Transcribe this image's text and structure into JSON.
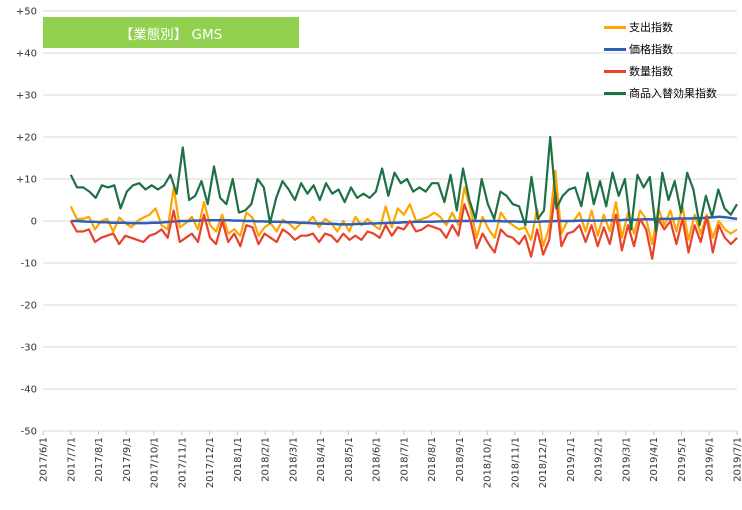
{
  "chart_data": {
    "type": "line",
    "title": "【業態別】 GMS",
    "title_background": "#92d050",
    "ylim": [
      -50,
      50
    ],
    "y_ticks": [
      "+50",
      "+40",
      "+30",
      "+20",
      "+10",
      "0",
      "-10",
      "-20",
      "-30",
      "-40",
      "-50"
    ],
    "y_tick_values": [
      50,
      40,
      30,
      20,
      10,
      0,
      -10,
      -20,
      -30,
      -40,
      -50
    ],
    "x_tick_labels": [
      "2017/6/1",
      "2017/7/1",
      "2017/8/1",
      "2017/9/1",
      "2017/10/1",
      "2017/11/1",
      "2017/12/1",
      "2018/1/1",
      "2018/2/1",
      "2018/3/1",
      "2018/4/1",
      "2018/5/1",
      "2018/6/1",
      "2018/7/1",
      "2018/8/1",
      "2018/9/1",
      "2018/10/1",
      "2018/11/1",
      "2018/12/1",
      "2019/1/1",
      "2019/2/1",
      "2019/3/1",
      "2019/4/1",
      "2019/5/1",
      "2019/6/1",
      "2019/7/1"
    ],
    "x_range": [
      "2017/6/1",
      "2019/7/1"
    ],
    "grid": "horizontal",
    "legend_position": "top-right",
    "series": [
      {
        "name": "支出指数",
        "color": "#ffa500",
        "values": [
          3.5,
          0.5,
          0.5,
          1.0,
          -2.0,
          0.0,
          0.5,
          -2.5,
          0.8,
          -0.5,
          -1.5,
          0.0,
          0.8,
          1.5,
          3.0,
          -1.0,
          -2.0,
          8.0,
          -1.5,
          -0.5,
          1.0,
          -2.0,
          4.5,
          -1.0,
          -2.5,
          1.5,
          -3.0,
          -2.0,
          -3.5,
          2.0,
          0.8,
          -3.5,
          -1.5,
          -0.5,
          -2.5,
          0.3,
          -0.5,
          -2.0,
          -0.5,
          -0.5,
          1.0,
          -1.5,
          0.5,
          -0.5,
          -2.5,
          0.0,
          -2.5,
          1.0,
          -1.0,
          0.5,
          -1.0,
          -2.0,
          3.5,
          -1.5,
          3.0,
          1.5,
          4.0,
          0.0,
          0.5,
          1.0,
          2.0,
          1.0,
          -1.0,
          2.0,
          -1.0,
          8.0,
          3.0,
          -4.0,
          1.0,
          -2.0,
          -4.0,
          2.0,
          0.0,
          -1.0,
          -2.0,
          -1.5,
          -4.5,
          3.0,
          -6.0,
          -1.5,
          12.0,
          -3.0,
          0.0,
          0.0,
          2.0,
          -2.5,
          2.5,
          -3.5,
          1.5,
          -2.5,
          4.5,
          -4.0,
          2.0,
          -3.0,
          2.5,
          0.5,
          -5.5,
          3.0,
          -1.0,
          2.5,
          -2.5,
          3.5,
          -4.5,
          1.5,
          -3.0,
          1.5,
          -4.0,
          0.0,
          -2.0,
          -3.0,
          -2.0
        ]
      },
      {
        "name": "価格指数",
        "color": "#2e5fb8",
        "values": [
          0.0,
          0.0,
          -0.1,
          -0.2,
          -0.2,
          -0.3,
          -0.3,
          -0.4,
          -0.4,
          -0.4,
          -0.5,
          -0.5,
          -0.5,
          -0.5,
          -0.4,
          -0.4,
          -0.3,
          -0.2,
          -0.1,
          0.0,
          0.0,
          0.1,
          0.1,
          0.2,
          0.2,
          0.2,
          0.2,
          0.2,
          0.1,
          0.1,
          0.0,
          0.0,
          -0.1,
          -0.1,
          -0.2,
          -0.2,
          -0.2,
          -0.3,
          -0.3,
          -0.4,
          -0.4,
          -0.5,
          -0.6,
          -0.6,
          -0.7,
          -0.7,
          -0.8,
          -0.8,
          -0.8,
          -0.7,
          -0.7,
          -0.6,
          -0.6,
          -0.5,
          -0.5,
          -0.4,
          -0.4,
          -0.3,
          -0.3,
          -0.2,
          -0.2,
          -0.2,
          -0.2,
          -0.1,
          -0.1,
          0.0,
          0.0,
          0.0,
          0.0,
          0.0,
          0.0,
          0.0,
          0.0,
          0.0,
          -0.1,
          -0.1,
          -0.1,
          -0.2,
          -0.2,
          -0.2,
          -0.2,
          -0.1,
          -0.1,
          0.0,
          0.0,
          0.0,
          0.0,
          0.1,
          0.1,
          0.1,
          0.1,
          0.1,
          0.2,
          0.2,
          0.2,
          0.3,
          0.3,
          0.3,
          0.4,
          0.4,
          0.4,
          0.5,
          0.5,
          0.5,
          0.6,
          0.6,
          0.6,
          0.7,
          0.7,
          0.8,
          0.9,
          1.0,
          0.9,
          0.7,
          0.5
        ]
      },
      {
        "name": "数量指数",
        "color": "#e8412c",
        "values": [
          0.0,
          -2.5,
          -2.5,
          -2.0,
          -5.0,
          -4.0,
          -3.5,
          -3.0,
          -5.5,
          -3.5,
          -4.0,
          -4.5,
          -5.0,
          -3.5,
          -3.0,
          -2.0,
          -4.0,
          2.5,
          -5.0,
          -4.0,
          -3.0,
          -5.0,
          1.5,
          -4.0,
          -5.5,
          0.0,
          -5.0,
          -3.0,
          -6.0,
          -1.0,
          -1.5,
          -5.5,
          -3.0,
          -4.0,
          -5.0,
          -2.0,
          -3.0,
          -4.5,
          -3.5,
          -3.5,
          -3.0,
          -5.0,
          -3.0,
          -3.5,
          -5.0,
          -3.0,
          -4.5,
          -3.5,
          -4.5,
          -2.5,
          -3.0,
          -4.0,
          -1.0,
          -3.5,
          -1.5,
          -2.0,
          0.0,
          -2.5,
          -2.0,
          -1.0,
          -1.5,
          -2.0,
          -4.0,
          -1.0,
          -3.5,
          4.0,
          0.0,
          -6.5,
          -3.0,
          -5.5,
          -7.5,
          -2.0,
          -3.5,
          -4.0,
          -5.5,
          -3.5,
          -8.5,
          -2.0,
          -8.0,
          -4.5,
          7.0,
          -6.0,
          -3.0,
          -2.5,
          -1.0,
          -5.0,
          -1.0,
          -6.0,
          -1.5,
          -5.5,
          1.5,
          -7.0,
          -1.0,
          -6.0,
          0.5,
          -2.0,
          -9.0,
          0.5,
          -2.0,
          0.0,
          -5.5,
          0.5,
          -7.5,
          -1.0,
          -5.0,
          1.0,
          -7.5,
          -1.0,
          -4.0,
          -5.5,
          -4.0
        ]
      },
      {
        "name": "商品入替効果指数",
        "color": "#1e7145",
        "values": [
          11.0,
          8.0,
          8.0,
          7.0,
          5.5,
          8.5,
          8.0,
          8.5,
          3.0,
          7.0,
          8.5,
          9.0,
          7.5,
          8.5,
          7.5,
          8.5,
          11.0,
          6.5,
          17.5,
          5.0,
          6.0,
          9.5,
          4.0,
          13.0,
          5.5,
          4.0,
          10.0,
          2.0,
          2.5,
          4.0,
          10.0,
          8.0,
          -0.5,
          5.5,
          9.5,
          7.5,
          5.0,
          9.0,
          6.5,
          8.5,
          5.0,
          9.0,
          6.5,
          7.5,
          4.5,
          8.0,
          5.5,
          6.5,
          5.5,
          7.0,
          12.5,
          6.0,
          11.5,
          9.0,
          10.0,
          7.0,
          8.0,
          7.0,
          9.0,
          9.0,
          4.5,
          11.0,
          2.5,
          12.5,
          5.0,
          0.5,
          10.0,
          4.0,
          0.5,
          7.0,
          6.0,
          4.0,
          3.5,
          -1.0,
          10.5,
          0.5,
          2.5,
          20.0,
          3.0,
          6.0,
          7.5,
          8.0,
          3.5,
          11.5,
          4.0,
          9.5,
          3.5,
          11.5,
          6.0,
          10.0,
          -2.0,
          11.0,
          8.0,
          10.5,
          -2.5,
          11.5,
          5.0,
          9.5,
          2.0,
          11.5,
          7.5,
          -1.0,
          6.0,
          1.0,
          7.5,
          3.0,
          1.5,
          4.0
        ]
      }
    ]
  }
}
